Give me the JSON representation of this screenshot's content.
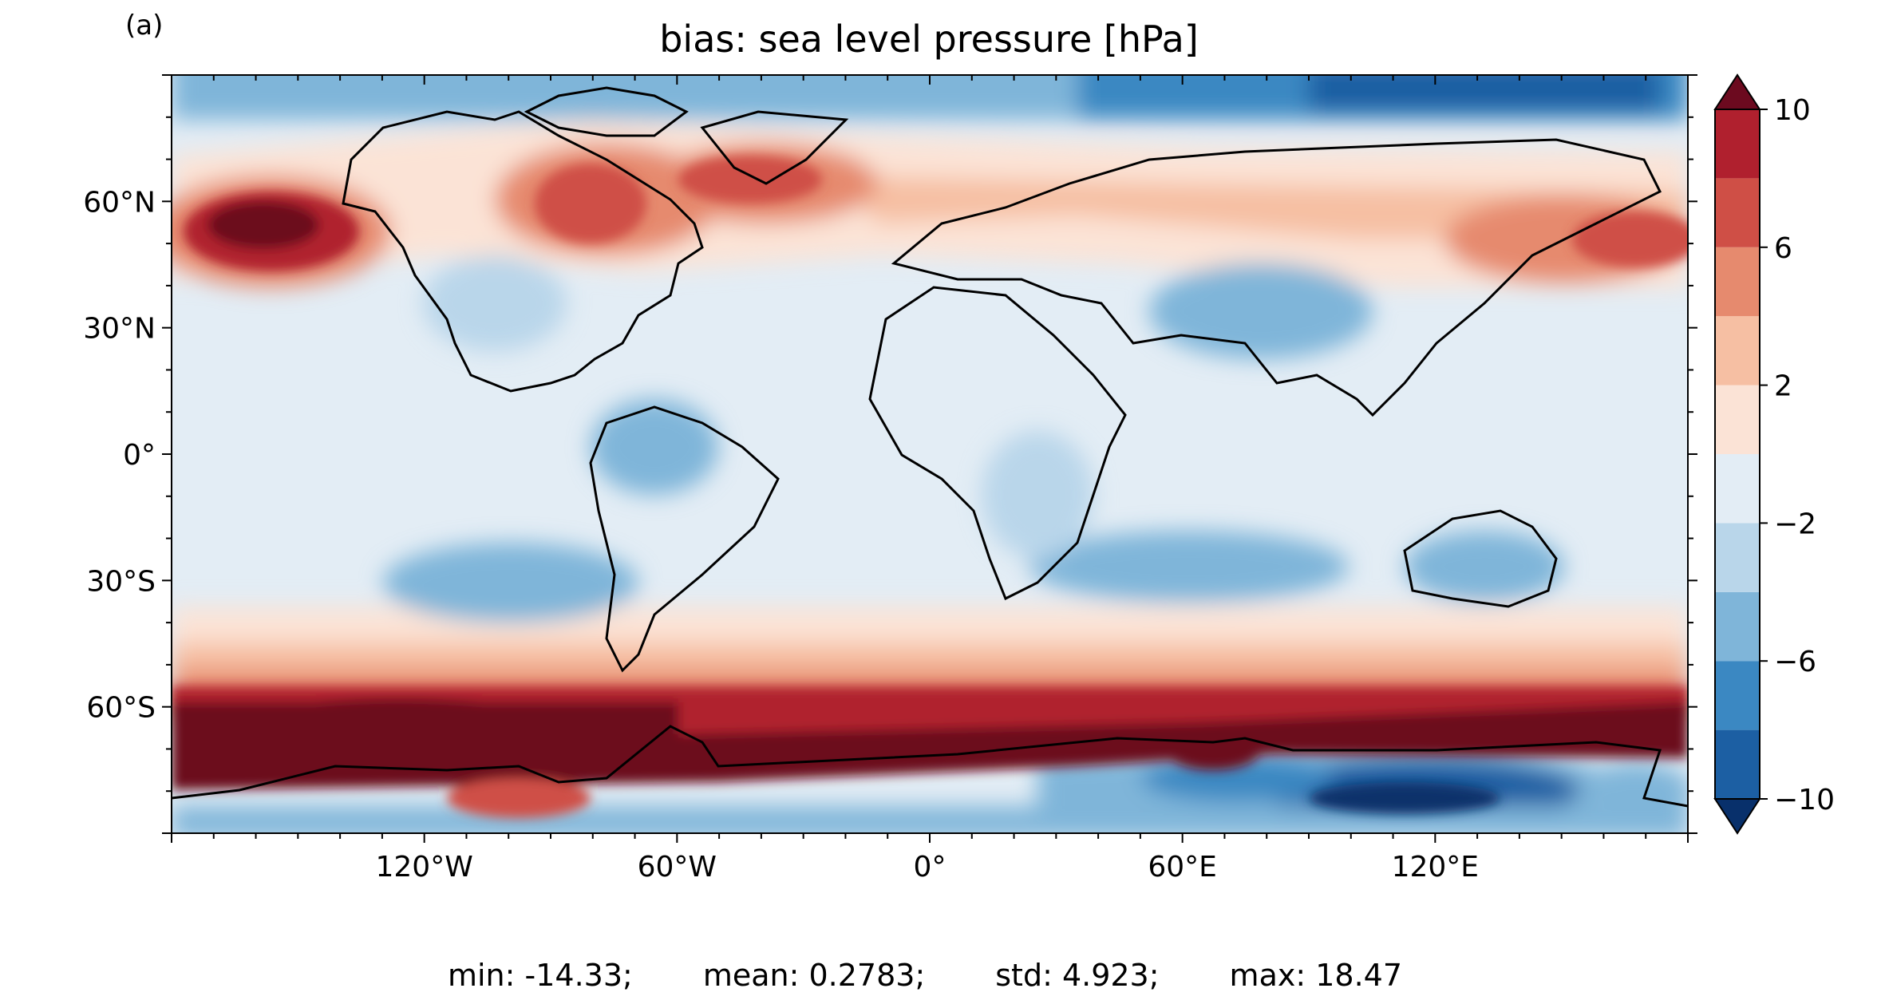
{
  "panel_label": "(a)",
  "title": "bias: sea level pressure [hPa]",
  "x_ticks": [
    "120°W",
    "60°W",
    "0°",
    "60°E",
    "120°E"
  ],
  "y_ticks": [
    "60°N",
    "30°N",
    "0°",
    "30°S",
    "60°S"
  ],
  "colorbar": {
    "ticks": [
      "10",
      "6",
      "2",
      "−2",
      "−6",
      "−10"
    ],
    "levels": [
      -10,
      -8,
      -6,
      -4,
      -2,
      0,
      2,
      4,
      6,
      8,
      10
    ],
    "extend": "both",
    "colors": [
      "#08306b",
      "#1c5fa3",
      "#3b88c2",
      "#7fb5d9",
      "#b9d6ea",
      "#e3edf5",
      "#fbe3d6",
      "#f6bfa3",
      "#e68a6e",
      "#cf4f46",
      "#b0202e",
      "#6c0a1f"
    ]
  },
  "stats": {
    "min": "min: -14.33;",
    "mean": "mean: 0.2783;",
    "std": "std: 4.923;",
    "max": "max: 18.47"
  }
}
